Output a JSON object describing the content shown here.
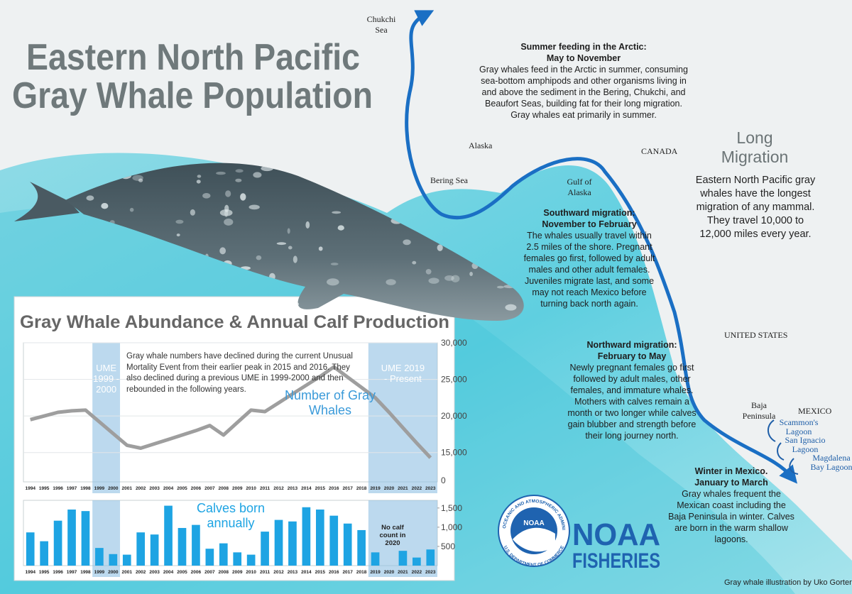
{
  "title_lines": [
    "Eastern North Pacific",
    "Gray Whale Population"
  ],
  "map_labels": {
    "chukchi": "Chukchi Sea",
    "alaska": "Alaska",
    "bering": "Bering Sea",
    "gulf": "Gulf of Alaska",
    "canada": "CANADA",
    "usa": "UNITED STATES",
    "baja": "Baja Peninsula",
    "mexico": "MEXICO"
  },
  "lagoons": [
    "Scammon's Lagoon",
    "San Ignacio Lagoon",
    "Magdalena Bay Lagoon"
  ],
  "sections": [
    {
      "heading": "Summer feeding in the Arctic:",
      "period": "May to November",
      "body": "Gray whales feed in the Arctic in summer, consuming sea-bottom amphipods and other organisms living in and above the sediment in the Bering, Chukchi, and Beaufort Seas, building fat for their long migration. Gray whales eat primarily in summer."
    },
    {
      "heading": "Southward migration:",
      "period": "November to February",
      "body": "The whales usually travel within 2.5 miles of the shore. Pregnant females go first, followed by adult males and other adult females. Juveniles migrate last, and some may not reach Mexico before turning back north again."
    },
    {
      "heading": "Northward migration:",
      "period": "February to May",
      "body": "Newly pregnant females go first followed by adult males, other females, and immature whales. Mothers with calves remain a month or two longer while calves gain blubber and strength before their long journey north."
    },
    {
      "heading": "Winter in Mexico.",
      "period": "January to March",
      "body": "Gray whales frequent the Mexican coast including the Baja Peninsula in winter. Calves are born in the warm shallow lagoons."
    }
  ],
  "long_migration": {
    "heading": "Long Migration",
    "body": "Eastern North Pacific gray whales have the longest migration of any mammal. They travel 10,000 to 12,000 miles every year."
  },
  "logo": {
    "badge": "NOAA",
    "ring_top": "NATIONAL OCEANIC AND ATMOSPHERIC ADMINISTRATION",
    "ring_bottom": "U.S. DEPARTMENT OF COMMERCE",
    "line1": "NOAA",
    "line2": "FISHERIES"
  },
  "credit": "Gray whale illustration by Uko Gorter",
  "chart_panel_title": "Gray Whale Abundance & Annual Calf Production",
  "chart_data": [
    {
      "type": "line",
      "categories": [
        "1994",
        "1995",
        "1996",
        "1997",
        "1998",
        "1999",
        "2000",
        "2001",
        "2002",
        "2003",
        "2004",
        "2005",
        "2006",
        "2007",
        "2008",
        "2009",
        "2010",
        "2011",
        "2012",
        "2013",
        "2014",
        "2015",
        "2016",
        "2017",
        "2018",
        "2019",
        "2020",
        "2021",
        "2022",
        "2023"
      ],
      "series": [
        {
          "name": "Number of Gray Whales",
          "color": "#9e9e9e",
          "values": [
            19500,
            20000,
            20500,
            20700,
            20800,
            19200,
            17600,
            16000,
            15600,
            16200,
            16800,
            17400,
            18000,
            18700,
            17400,
            19100,
            20800,
            20600,
            21800,
            23000,
            24200,
            25400,
            26700,
            25300,
            23900,
            22500,
            20500,
            18400,
            16300,
            14300
          ]
        }
      ],
      "ylim": [
        11000,
        30000
      ],
      "yticks": [
        {
          "value": 15000,
          "label": "15,000"
        },
        {
          "value": 20000,
          "label": "20,000"
        },
        {
          "value": 25000,
          "label": "25,000"
        },
        {
          "value": 30000,
          "label": "30,000"
        }
      ],
      "ybreak_label": "0",
      "grid": true,
      "highlights": [
        {
          "from": "1999",
          "to": "2000",
          "label": "UME 1999 - 2000"
        },
        {
          "from": "2019",
          "to": "2023",
          "label": "UME 2019 - Present"
        }
      ],
      "annotation": "Gray whale numbers have declined during the current Unusual Mortality Event from their earlier peak in 2015 and 2016. They also declined during a previous UME in 1999-2000 and then rebounded in the following years."
    },
    {
      "type": "bar",
      "categories": [
        "1994",
        "1995",
        "1996",
        "1997",
        "1998",
        "1999",
        "2000",
        "2001",
        "2002",
        "2003",
        "2004",
        "2005",
        "2006",
        "2007",
        "2008",
        "2009",
        "2010",
        "2011",
        "2012",
        "2013",
        "2014",
        "2015",
        "2016",
        "2017",
        "2018",
        "2019",
        "2020",
        "2021",
        "2022",
        "2023"
      ],
      "series": [
        {
          "name": "Calves born annually",
          "color": "#1ea4e3",
          "values": [
            865,
            635,
            1170,
            1460,
            1420,
            460,
            300,
            285,
            865,
            810,
            1560,
            980,
            1060,
            440,
            580,
            345,
            285,
            885,
            1190,
            1150,
            1520,
            1460,
            1300,
            1095,
            925,
            345,
            null,
            385,
            210,
            420
          ]
        }
      ],
      "ylim": [
        0,
        1700
      ],
      "yticks": [
        500,
        {
          "value": 1000,
          "label": "1,000"
        },
        {
          "value": 1500,
          "label": "1,500"
        }
      ],
      "grid": false,
      "highlights": [
        {
          "from": "1999",
          "to": "2000"
        },
        {
          "from": "2019",
          "to": "2023"
        }
      ],
      "annotation": "No calf count in 2020"
    }
  ]
}
